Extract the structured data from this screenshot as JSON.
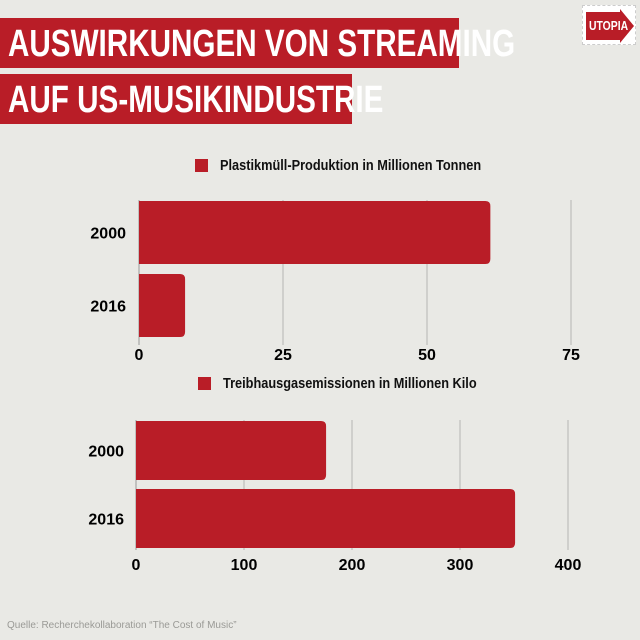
{
  "title_line1": "AUSWIRKUNGEN VON STREAMING",
  "title_line2": "AUF US-MUSIKINDUSTRIE",
  "logo": "UTOPIA",
  "source": "Quelle: Recherchekollaboration “The Cost of Music”",
  "colors": {
    "bar": "#b91d27",
    "background": "#e9e9e5",
    "grid": "#b5b5b2"
  },
  "chart_data": [
    {
      "type": "bar",
      "orientation": "horizontal",
      "legend": "Plastikmüll-Produktion in Millionen Tonnen",
      "categories": [
        "2000",
        "2016"
      ],
      "series": [
        {
          "name": "Plastikmüll-Produktion in Millionen Tonnen",
          "values": [
            61,
            8
          ]
        }
      ],
      "xlim": [
        0,
        75
      ],
      "xticks": [
        "0",
        "25",
        "50",
        "75"
      ],
      "grid": true,
      "legend_position": "top"
    },
    {
      "type": "bar",
      "orientation": "horizontal",
      "legend": "Treibhausgasemissionen in Millionen Kilo",
      "categories": [
        "2000",
        "2016"
      ],
      "series": [
        {
          "name": "Treibhausgasemissionen in Millionen Kilo",
          "values": [
            176,
            351
          ]
        }
      ],
      "xlim": [
        0,
        400
      ],
      "xticks": [
        "0",
        "100",
        "200",
        "300",
        "400"
      ],
      "grid": true,
      "legend_position": "top"
    }
  ]
}
